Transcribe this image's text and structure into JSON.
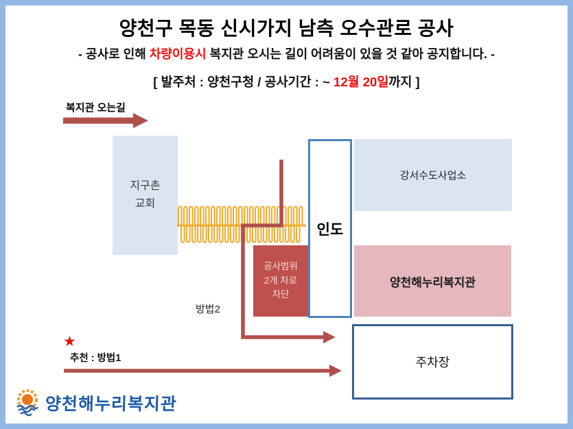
{
  "header": {
    "title": "양천구 목동 신시가지 남측 오수관로 공사",
    "notice_prefix": "- 공사로 인해 ",
    "notice_highlight": "차량이용시",
    "notice_suffix": " 복지관 오시는 길이 어려움이 있을 것 같아 공지합니다. -",
    "info_prefix": "[ 발주처 : 양천구청  / 공사기간 :  ~ ",
    "info_highlight": "12월 20일",
    "info_suffix": "까지 ]"
  },
  "map": {
    "route_label": "복지관 오는길",
    "church": {
      "line1": "지구촌",
      "line2": "교회"
    },
    "waterworks_label": "강서수도사업소",
    "sidewalk_label": "인도",
    "welfare_center_label": "양천해누리복지관",
    "construction": {
      "line1": "공사범위",
      "line2": "2개 차로",
      "line3": "차단"
    },
    "parking_label": "주차장",
    "method2_label": "방법2",
    "star_glyph": "★",
    "recommended_label": "추천 : 방법1"
  },
  "footer": {
    "logo_text": "양천해누리복지관"
  },
  "colors": {
    "page_border": "#92B7E4",
    "light_blue_box": "#DBE5F1",
    "pink_box": "#E5B8BD",
    "construction_box": "#C0504D",
    "construction_text": "#F4DCDA",
    "sidewalk_border": "#4F81BD",
    "parking_border": "#376092",
    "arrow_red": "#B0504B",
    "barrier_yellow": "#EFAC2F",
    "highlight_red": "#F40B0B",
    "star_red": "#E3120B",
    "logo_blue": "#1D5BA7"
  }
}
